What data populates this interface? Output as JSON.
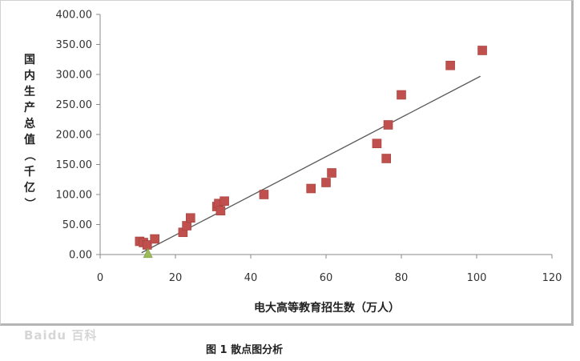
{
  "chart_data": {
    "type": "scatter",
    "title": "",
    "xlabel": "电大高等教育招生数（万人）",
    "ylabel": "国内生产总值（千亿）",
    "xlim": [
      0,
      120
    ],
    "ylim": [
      0,
      400
    ],
    "x_ticks": [
      "0",
      "20",
      "40",
      "60",
      "80",
      "100",
      "120"
    ],
    "y_ticks": [
      "0.00",
      "50.00",
      "100.00",
      "150.00",
      "200.00",
      "250.00",
      "300.00",
      "350.00",
      "400.00"
    ],
    "grid": false,
    "marker_color": "#c0504d",
    "outlier_color": "#9bbb59",
    "trendline_color": "#595959",
    "series": [
      {
        "marker": "square",
        "points": [
          [
            10.5,
            22
          ],
          [
            11.5,
            20
          ],
          [
            12.5,
            16
          ],
          [
            14.5,
            26
          ],
          [
            22,
            37
          ],
          [
            23,
            48
          ],
          [
            24,
            61
          ],
          [
            31,
            80
          ],
          [
            31.5,
            85
          ],
          [
            32,
            73
          ],
          [
            33,
            89
          ],
          [
            43.5,
            100
          ],
          [
            56,
            110
          ],
          [
            60,
            120
          ],
          [
            61.5,
            136
          ],
          [
            73.5,
            185
          ],
          [
            76,
            160
          ],
          [
            76.5,
            216
          ],
          [
            80,
            266
          ],
          [
            93,
            315
          ],
          [
            101.5,
            340
          ]
        ]
      },
      {
        "marker": "triangle",
        "points": [
          [
            12.7,
            0
          ]
        ]
      }
    ],
    "trendline": [
      [
        11,
        3
      ],
      [
        101,
        297
      ]
    ]
  },
  "caption": "图 1  散点图分析",
  "watermark": "Baidu 百科"
}
